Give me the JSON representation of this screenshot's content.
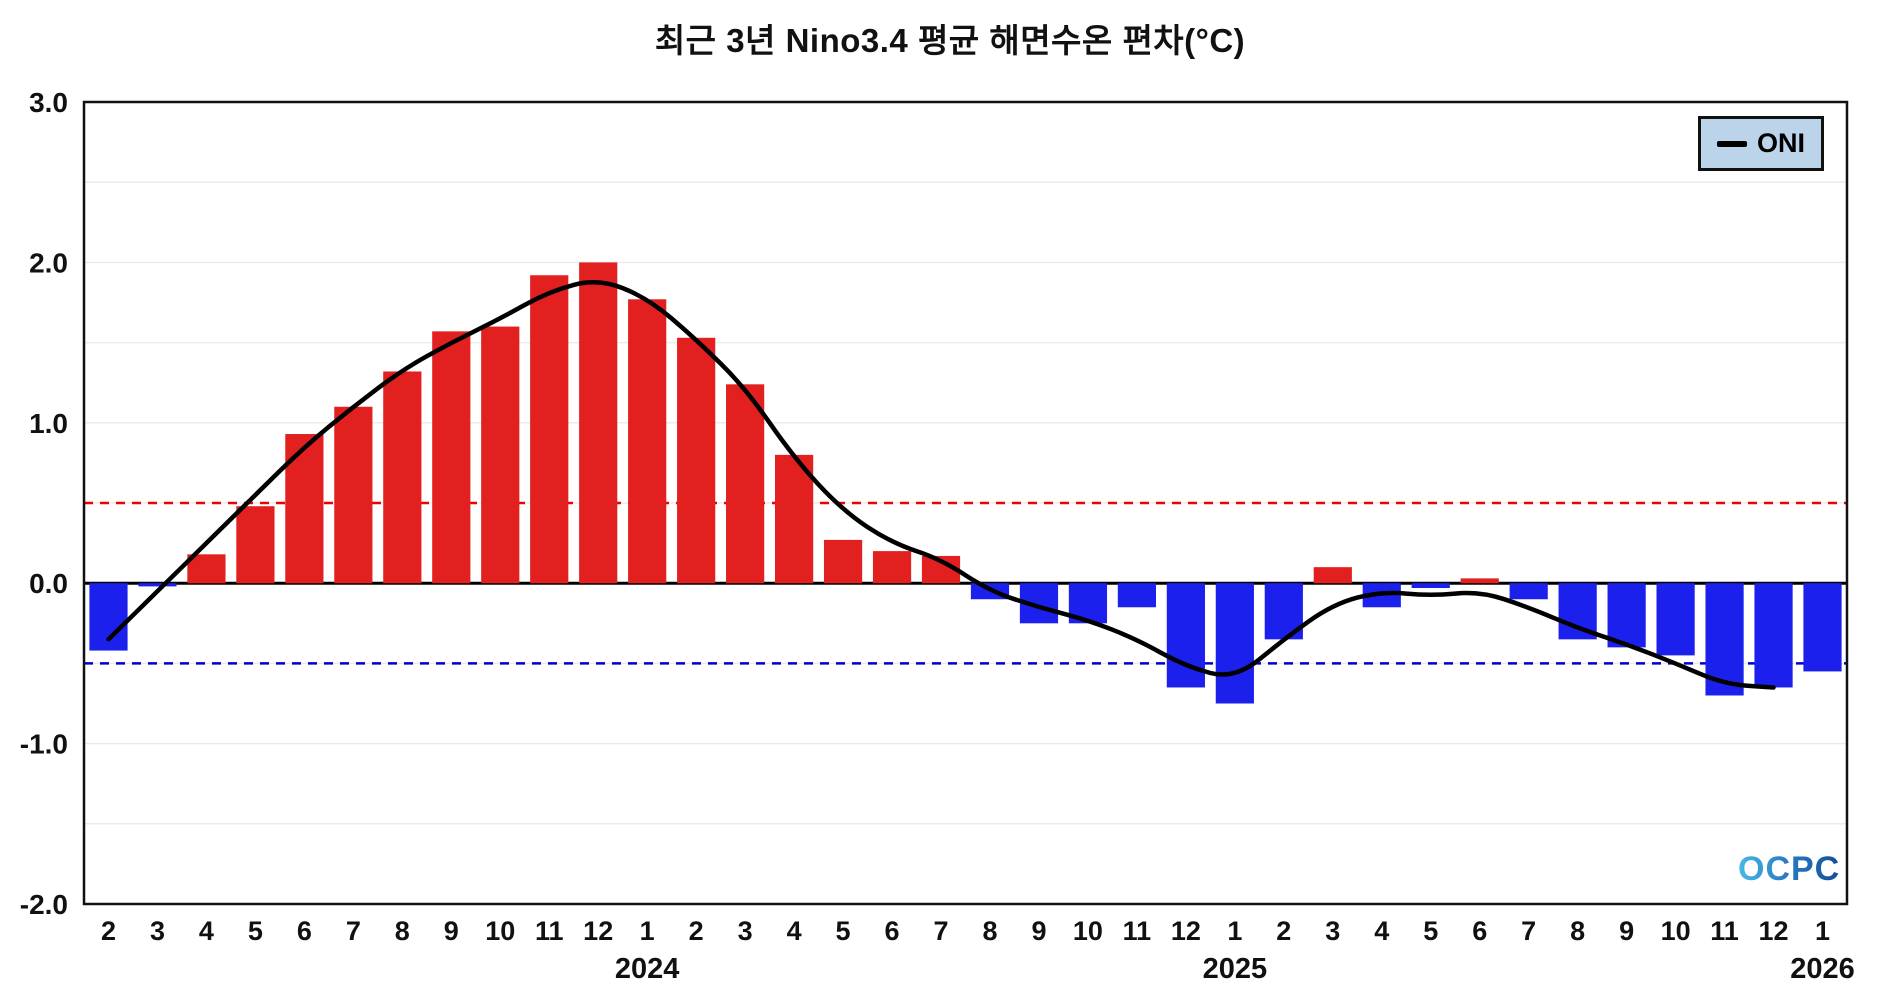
{
  "title": "최근 3년 Nino3.4 평균 해면수온 편차(°C)",
  "legend": {
    "label": "ONI"
  },
  "logo_text": "OCPC",
  "chart_data": {
    "type": "bar",
    "title": "최근 3년 Nino3.4 평균 해면수온 편차(°C)",
    "ylabel": "해면수온 편차(°C)",
    "ylim": [
      -2.0,
      3.0
    ],
    "yticks": [
      3.0,
      2.0,
      1.0,
      0.0,
      -1.0,
      -2.0
    ],
    "grid_step": 0.5,
    "x_labels": [
      "2",
      "3",
      "4",
      "5",
      "6",
      "7",
      "8",
      "9",
      "10",
      "11",
      "12",
      "1",
      "2",
      "3",
      "4",
      "5",
      "6",
      "7",
      "8",
      "9",
      "10",
      "11",
      "12",
      "1",
      "2",
      "3",
      "4",
      "5",
      "6",
      "7",
      "8",
      "9",
      "10",
      "11",
      "12",
      "1"
    ],
    "year_labels": [
      {
        "label": "2024",
        "index": 11
      },
      {
        "label": "2025",
        "index": 23
      },
      {
        "label": "2026",
        "index": 35
      }
    ],
    "bars": [
      -0.42,
      -0.02,
      0.18,
      0.48,
      0.93,
      1.1,
      1.32,
      1.57,
      1.6,
      1.92,
      2.0,
      1.77,
      1.53,
      1.24,
      0.8,
      0.27,
      0.2,
      0.17,
      -0.1,
      -0.25,
      -0.25,
      -0.15,
      -0.65,
      -0.75,
      -0.35,
      0.1,
      -0.15,
      -0.03,
      0.03,
      -0.1,
      -0.35,
      -0.4,
      -0.45,
      -0.7,
      -0.65,
      -0.55
    ],
    "line": {
      "name": "ONI",
      "values": [
        -0.35,
        -0.05,
        0.25,
        0.55,
        0.85,
        1.1,
        1.33,
        1.5,
        1.65,
        1.82,
        1.9,
        1.78,
        1.52,
        1.22,
        0.78,
        0.45,
        0.25,
        0.15,
        -0.05,
        -0.15,
        -0.23,
        -0.35,
        -0.52,
        -0.6,
        -0.35,
        -0.13,
        -0.05,
        -0.08,
        -0.05,
        -0.15,
        -0.28,
        -0.38,
        -0.5,
        -0.63,
        -0.65,
        null
      ]
    },
    "reference_lines": [
      {
        "value": 0.5,
        "color": "#ee0000",
        "style": "dashed",
        "name": "el-nino-threshold"
      },
      {
        "value": -0.5,
        "color": "#0000cc",
        "style": "dashed",
        "name": "la-nina-threshold"
      }
    ],
    "colors": {
      "positive": "#e32020",
      "negative": "#1c20ec",
      "line": "#000000",
      "grid": "#ebebeb",
      "axis": "#111111"
    },
    "legend_position": "top-right"
  }
}
